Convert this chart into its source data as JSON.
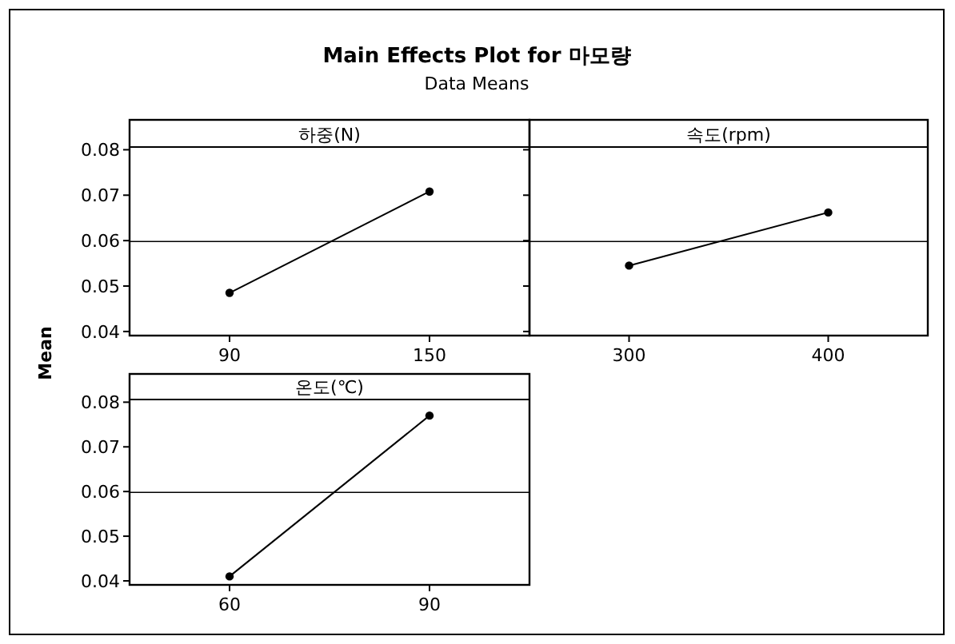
{
  "chart_data": [
    {
      "type": "line",
      "title": "Main Effects Plot for 마모량",
      "subtitle": "Data Means",
      "xlabel": "하중(N)",
      "ylabel": "Mean",
      "categories": [
        "90",
        "150"
      ],
      "series": [
        {
          "color": "#000000",
          "values": [
            0.0485,
            0.0708
          ]
        }
      ],
      "ylim": [
        0.0391,
        0.0806
      ],
      "yticks": [
        0.04,
        0.05,
        0.06,
        0.07,
        0.08
      ],
      "ref_lines": [
        {
          "axis": "y",
          "value": 0.0598,
          "color": "#000000"
        }
      ],
      "marker": "circle",
      "grid": false
    },
    {
      "type": "line",
      "xlabel": "속도(rpm)",
      "categories": [
        "300",
        "400"
      ],
      "series": [
        {
          "color": "#000000",
          "values": [
            0.0545,
            0.0662
          ]
        }
      ],
      "ylim": [
        0.0391,
        0.0806
      ],
      "yticks": [
        0.04,
        0.05,
        0.06,
        0.07,
        0.08
      ],
      "tick_labels": "x",
      "ref_lines": [
        {
          "axis": "y",
          "value": 0.0598,
          "color": "#000000"
        }
      ],
      "marker": "circle",
      "grid": false
    },
    {
      "type": "line",
      "xlabel": "온도(℃)",
      "categories": [
        "60",
        "90"
      ],
      "series": [
        {
          "color": "#000000",
          "values": [
            0.041,
            0.077
          ]
        }
      ],
      "ylim": [
        0.0391,
        0.0806
      ],
      "yticks": [
        0.04,
        0.05,
        0.06,
        0.07,
        0.08
      ],
      "ref_lines": [
        {
          "axis": "y",
          "value": 0.0598,
          "color": "#000000"
        }
      ],
      "marker": "circle",
      "grid": false
    }
  ]
}
